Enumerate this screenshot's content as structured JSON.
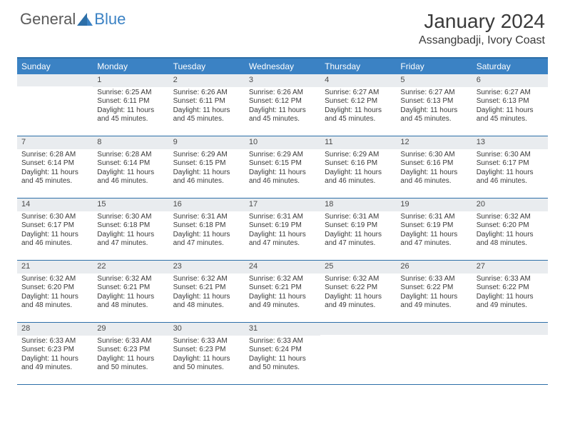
{
  "brand": {
    "text1": "General",
    "text2": "Blue"
  },
  "title": "January 2024",
  "location": "Assangbadji, Ivory Coast",
  "colors": {
    "header_bg": "#3b82c4",
    "header_border": "#2d6fa8",
    "daynum_bg": "#e9ecef",
    "text": "#3a3a3a",
    "logo_gray": "#5a5a5a",
    "logo_blue": "#3b82c4"
  },
  "day_names": [
    "Sunday",
    "Monday",
    "Tuesday",
    "Wednesday",
    "Thursday",
    "Friday",
    "Saturday"
  ],
  "weeks": [
    [
      {
        "n": "",
        "lines": []
      },
      {
        "n": "1",
        "lines": [
          "Sunrise: 6:25 AM",
          "Sunset: 6:11 PM",
          "Daylight: 11 hours",
          "and 45 minutes."
        ]
      },
      {
        "n": "2",
        "lines": [
          "Sunrise: 6:26 AM",
          "Sunset: 6:11 PM",
          "Daylight: 11 hours",
          "and 45 minutes."
        ]
      },
      {
        "n": "3",
        "lines": [
          "Sunrise: 6:26 AM",
          "Sunset: 6:12 PM",
          "Daylight: 11 hours",
          "and 45 minutes."
        ]
      },
      {
        "n": "4",
        "lines": [
          "Sunrise: 6:27 AM",
          "Sunset: 6:12 PM",
          "Daylight: 11 hours",
          "and 45 minutes."
        ]
      },
      {
        "n": "5",
        "lines": [
          "Sunrise: 6:27 AM",
          "Sunset: 6:13 PM",
          "Daylight: 11 hours",
          "and 45 minutes."
        ]
      },
      {
        "n": "6",
        "lines": [
          "Sunrise: 6:27 AM",
          "Sunset: 6:13 PM",
          "Daylight: 11 hours",
          "and 45 minutes."
        ]
      }
    ],
    [
      {
        "n": "7",
        "lines": [
          "Sunrise: 6:28 AM",
          "Sunset: 6:14 PM",
          "Daylight: 11 hours",
          "and 45 minutes."
        ]
      },
      {
        "n": "8",
        "lines": [
          "Sunrise: 6:28 AM",
          "Sunset: 6:14 PM",
          "Daylight: 11 hours",
          "and 46 minutes."
        ]
      },
      {
        "n": "9",
        "lines": [
          "Sunrise: 6:29 AM",
          "Sunset: 6:15 PM",
          "Daylight: 11 hours",
          "and 46 minutes."
        ]
      },
      {
        "n": "10",
        "lines": [
          "Sunrise: 6:29 AM",
          "Sunset: 6:15 PM",
          "Daylight: 11 hours",
          "and 46 minutes."
        ]
      },
      {
        "n": "11",
        "lines": [
          "Sunrise: 6:29 AM",
          "Sunset: 6:16 PM",
          "Daylight: 11 hours",
          "and 46 minutes."
        ]
      },
      {
        "n": "12",
        "lines": [
          "Sunrise: 6:30 AM",
          "Sunset: 6:16 PM",
          "Daylight: 11 hours",
          "and 46 minutes."
        ]
      },
      {
        "n": "13",
        "lines": [
          "Sunrise: 6:30 AM",
          "Sunset: 6:17 PM",
          "Daylight: 11 hours",
          "and 46 minutes."
        ]
      }
    ],
    [
      {
        "n": "14",
        "lines": [
          "Sunrise: 6:30 AM",
          "Sunset: 6:17 PM",
          "Daylight: 11 hours",
          "and 46 minutes."
        ]
      },
      {
        "n": "15",
        "lines": [
          "Sunrise: 6:30 AM",
          "Sunset: 6:18 PM",
          "Daylight: 11 hours",
          "and 47 minutes."
        ]
      },
      {
        "n": "16",
        "lines": [
          "Sunrise: 6:31 AM",
          "Sunset: 6:18 PM",
          "Daylight: 11 hours",
          "and 47 minutes."
        ]
      },
      {
        "n": "17",
        "lines": [
          "Sunrise: 6:31 AM",
          "Sunset: 6:19 PM",
          "Daylight: 11 hours",
          "and 47 minutes."
        ]
      },
      {
        "n": "18",
        "lines": [
          "Sunrise: 6:31 AM",
          "Sunset: 6:19 PM",
          "Daylight: 11 hours",
          "and 47 minutes."
        ]
      },
      {
        "n": "19",
        "lines": [
          "Sunrise: 6:31 AM",
          "Sunset: 6:19 PM",
          "Daylight: 11 hours",
          "and 47 minutes."
        ]
      },
      {
        "n": "20",
        "lines": [
          "Sunrise: 6:32 AM",
          "Sunset: 6:20 PM",
          "Daylight: 11 hours",
          "and 48 minutes."
        ]
      }
    ],
    [
      {
        "n": "21",
        "lines": [
          "Sunrise: 6:32 AM",
          "Sunset: 6:20 PM",
          "Daylight: 11 hours",
          "and 48 minutes."
        ]
      },
      {
        "n": "22",
        "lines": [
          "Sunrise: 6:32 AM",
          "Sunset: 6:21 PM",
          "Daylight: 11 hours",
          "and 48 minutes."
        ]
      },
      {
        "n": "23",
        "lines": [
          "Sunrise: 6:32 AM",
          "Sunset: 6:21 PM",
          "Daylight: 11 hours",
          "and 48 minutes."
        ]
      },
      {
        "n": "24",
        "lines": [
          "Sunrise: 6:32 AM",
          "Sunset: 6:21 PM",
          "Daylight: 11 hours",
          "and 49 minutes."
        ]
      },
      {
        "n": "25",
        "lines": [
          "Sunrise: 6:32 AM",
          "Sunset: 6:22 PM",
          "Daylight: 11 hours",
          "and 49 minutes."
        ]
      },
      {
        "n": "26",
        "lines": [
          "Sunrise: 6:33 AM",
          "Sunset: 6:22 PM",
          "Daylight: 11 hours",
          "and 49 minutes."
        ]
      },
      {
        "n": "27",
        "lines": [
          "Sunrise: 6:33 AM",
          "Sunset: 6:22 PM",
          "Daylight: 11 hours",
          "and 49 minutes."
        ]
      }
    ],
    [
      {
        "n": "28",
        "lines": [
          "Sunrise: 6:33 AM",
          "Sunset: 6:23 PM",
          "Daylight: 11 hours",
          "and 49 minutes."
        ]
      },
      {
        "n": "29",
        "lines": [
          "Sunrise: 6:33 AM",
          "Sunset: 6:23 PM",
          "Daylight: 11 hours",
          "and 50 minutes."
        ]
      },
      {
        "n": "30",
        "lines": [
          "Sunrise: 6:33 AM",
          "Sunset: 6:23 PM",
          "Daylight: 11 hours",
          "and 50 minutes."
        ]
      },
      {
        "n": "31",
        "lines": [
          "Sunrise: 6:33 AM",
          "Sunset: 6:24 PM",
          "Daylight: 11 hours",
          "and 50 minutes."
        ]
      },
      {
        "n": "",
        "lines": []
      },
      {
        "n": "",
        "lines": []
      },
      {
        "n": "",
        "lines": []
      }
    ]
  ]
}
